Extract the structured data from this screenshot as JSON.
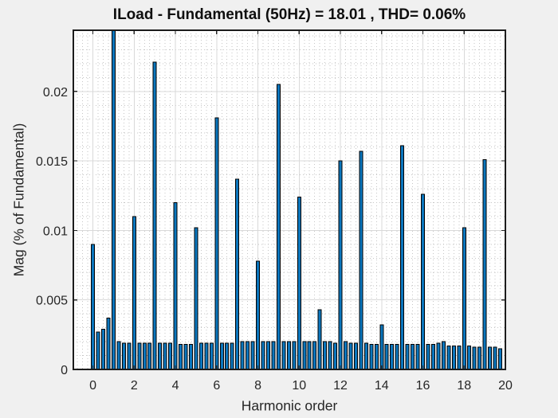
{
  "figure": {
    "background_color": "#f0f0f0",
    "plot_background_color": "#ffffff",
    "axis_box_color": "#1c1c1c",
    "tick_color": "#262626",
    "tick_label_color": "#262626",
    "major_grid_color": "#d9d9d9",
    "minor_grid_color": "#c6c6c6",
    "bar_fill_color": "#0b76bd",
    "bar_edge_color": "#000000"
  },
  "chart_data": {
    "type": "bar",
    "title": "ILoad - Fundamental (50Hz) = 18.01 , THD= 0.06%",
    "xlabel": "Harmonic order",
    "ylabel": "Mag (% of Fundamental)",
    "signal_name": "ILoad",
    "fundamental_frequency_hz": 50,
    "fundamental_peak": 18.01,
    "thd_percent": 0.06,
    "xlim": [
      -0.95,
      20.0
    ],
    "ylim": [
      0,
      0.0244
    ],
    "xticks": [
      0,
      2,
      4,
      6,
      8,
      10,
      12,
      14,
      16,
      18,
      20
    ],
    "xtick_labels": [
      "0",
      "2",
      "4",
      "6",
      "8",
      "10",
      "12",
      "14",
      "16",
      "18",
      "20"
    ],
    "yticks": [
      0,
      0.005,
      0.01,
      0.015,
      0.02
    ],
    "ytick_labels": [
      "0",
      "0.005",
      "0.01",
      "0.015",
      "0.02"
    ],
    "minor_x_step": 0.25,
    "minor_y_step": 0.001,
    "grid": "on",
    "minor_grid": "on",
    "legend": "none",
    "bar_clip_note": "bar at harmonic 1 is the fundamental (100%) and is clipped at the top of the axis",
    "x": [
      0,
      0.25,
      0.5,
      0.75,
      1,
      1.25,
      1.5,
      1.75,
      2,
      2.25,
      2.5,
      2.75,
      3,
      3.25,
      3.5,
      3.75,
      4,
      4.25,
      4.5,
      4.75,
      5,
      5.25,
      5.5,
      5.75,
      6,
      6.25,
      6.5,
      6.75,
      7,
      7.25,
      7.5,
      7.75,
      8,
      8.25,
      8.5,
      8.75,
      9,
      9.25,
      9.5,
      9.75,
      10,
      10.25,
      10.5,
      10.75,
      11,
      11.25,
      11.5,
      11.75,
      12,
      12.25,
      12.5,
      12.75,
      13,
      13.25,
      13.5,
      13.75,
      14,
      14.25,
      14.5,
      14.75,
      15,
      15.25,
      15.5,
      15.75,
      16,
      16.25,
      16.5,
      16.75,
      17,
      17.25,
      17.5,
      17.75,
      18,
      18.25,
      18.5,
      18.75,
      19,
      19.25,
      19.5,
      19.75
    ],
    "values": [
      0.009,
      0.0027,
      0.0029,
      0.0037,
      100,
      0.002,
      0.0019,
      0.0019,
      0.011,
      0.0019,
      0.0019,
      0.0019,
      0.0221,
      0.0019,
      0.0019,
      0.0019,
      0.012,
      0.0018,
      0.0018,
      0.0018,
      0.0102,
      0.0019,
      0.0019,
      0.0019,
      0.0181,
      0.0019,
      0.0019,
      0.0019,
      0.0137,
      0.002,
      0.002,
      0.002,
      0.0078,
      0.002,
      0.002,
      0.002,
      0.0205,
      0.002,
      0.002,
      0.002,
      0.0124,
      0.002,
      0.002,
      0.002,
      0.0043,
      0.002,
      0.002,
      0.0019,
      0.015,
      0.002,
      0.0019,
      0.0019,
      0.0157,
      0.0019,
      0.0018,
      0.0018,
      0.0032,
      0.0018,
      0.0018,
      0.0018,
      0.0161,
      0.0018,
      0.0018,
      0.0018,
      0.0126,
      0.0018,
      0.0018,
      0.0019,
      0.002,
      0.0017,
      0.0017,
      0.0017,
      0.0102,
      0.0017,
      0.0016,
      0.0016,
      0.0151,
      0.0016,
      0.0016,
      0.0015
    ]
  }
}
